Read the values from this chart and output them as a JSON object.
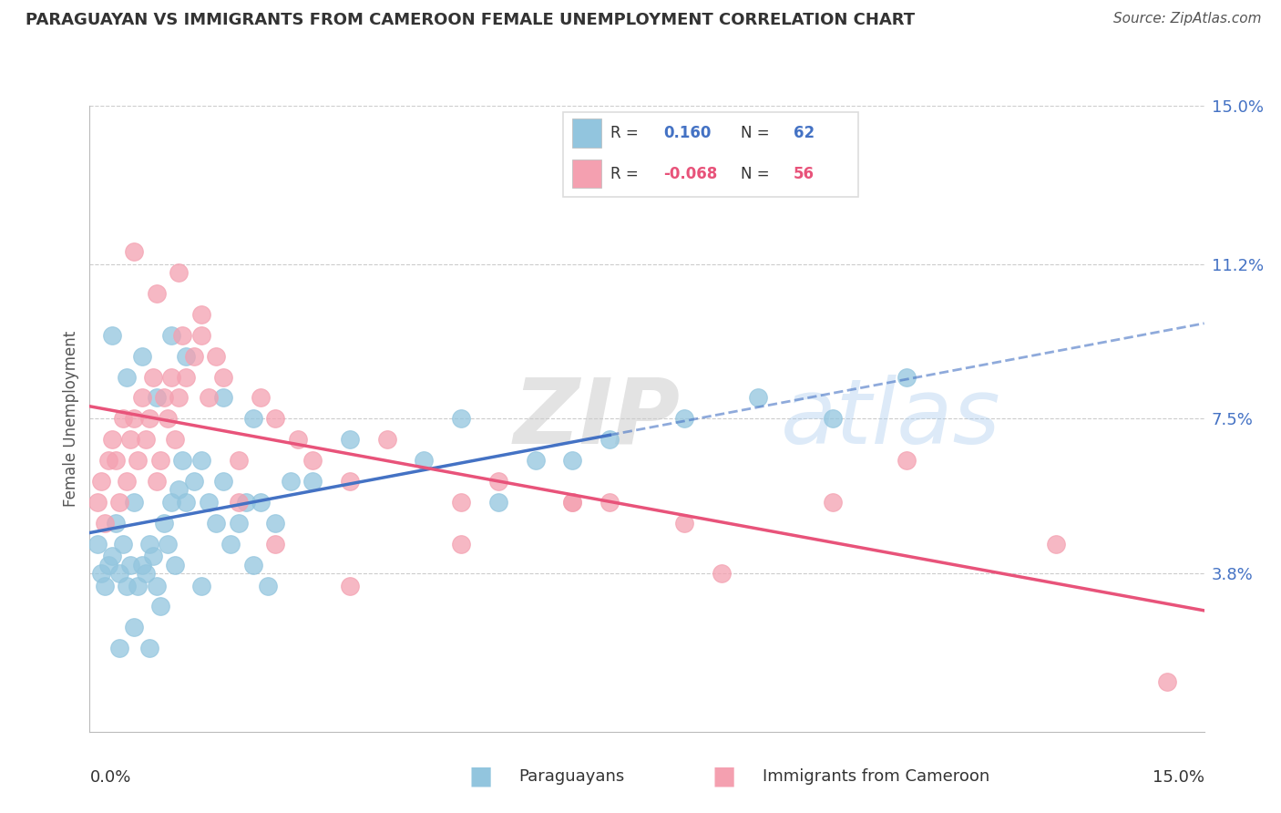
{
  "title": "PARAGUAYAN VS IMMIGRANTS FROM CAMEROON FEMALE UNEMPLOYMENT CORRELATION CHART",
  "source": "Source: ZipAtlas.com",
  "ylabel": "Female Unemployment",
  "right_ytick_values": [
    3.8,
    7.5,
    11.2,
    15.0
  ],
  "right_ytick_labels": [
    "3.8%",
    "7.5%",
    "11.2%",
    "15.0%"
  ],
  "xmin": 0.0,
  "xmax": 15.0,
  "ymin": 0.0,
  "ymax": 15.0,
  "color_paraguayan": "#92C5DE",
  "color_cameroon": "#F4A0B0",
  "color_line_paraguayan": "#4472C4",
  "color_line_cameroon": "#E8537A",
  "color_blue_text": "#4472C4",
  "color_pink_text": "#E8537A",
  "watermark_zip": "ZIP",
  "watermark_atlas": "atlas",
  "paraguayans_x": [
    0.1,
    0.15,
    0.2,
    0.25,
    0.3,
    0.35,
    0.4,
    0.45,
    0.5,
    0.55,
    0.6,
    0.65,
    0.7,
    0.75,
    0.8,
    0.85,
    0.9,
    0.95,
    1.0,
    1.05,
    1.1,
    1.15,
    1.2,
    1.25,
    1.3,
    1.4,
    1.5,
    1.6,
    1.7,
    1.8,
    1.9,
    2.0,
    2.1,
    2.2,
    2.3,
    2.4,
    2.5,
    2.7,
    0.3,
    0.5,
    0.7,
    0.9,
    1.1,
    1.3,
    1.8,
    2.2,
    3.0,
    3.5,
    4.5,
    5.0,
    5.5,
    6.0,
    6.5,
    7.0,
    8.0,
    9.0,
    10.0,
    11.0,
    0.4,
    0.6,
    0.8,
    1.5
  ],
  "paraguayans_y": [
    4.5,
    3.8,
    3.5,
    4.0,
    4.2,
    5.0,
    3.8,
    4.5,
    3.5,
    4.0,
    5.5,
    3.5,
    4.0,
    3.8,
    4.5,
    4.2,
    3.5,
    3.0,
    5.0,
    4.5,
    5.5,
    4.0,
    5.8,
    6.5,
    5.5,
    6.0,
    6.5,
    5.5,
    5.0,
    6.0,
    4.5,
    5.0,
    5.5,
    4.0,
    5.5,
    3.5,
    5.0,
    6.0,
    9.5,
    8.5,
    9.0,
    8.0,
    9.5,
    9.0,
    8.0,
    7.5,
    6.0,
    7.0,
    6.5,
    7.5,
    5.5,
    6.5,
    6.5,
    7.0,
    7.5,
    8.0,
    7.5,
    8.5,
    2.0,
    2.5,
    2.0,
    3.5
  ],
  "cameroon_x": [
    0.1,
    0.15,
    0.2,
    0.25,
    0.3,
    0.35,
    0.4,
    0.45,
    0.5,
    0.55,
    0.6,
    0.65,
    0.7,
    0.75,
    0.8,
    0.85,
    0.9,
    0.95,
    1.0,
    1.05,
    1.1,
    1.15,
    1.2,
    1.25,
    1.3,
    1.4,
    1.5,
    1.6,
    1.7,
    1.8,
    2.0,
    2.3,
    2.5,
    2.8,
    3.0,
    3.5,
    4.0,
    5.0,
    5.5,
    6.5,
    7.0,
    8.0,
    10.0,
    11.0,
    13.0,
    0.6,
    0.9,
    1.2,
    1.5,
    2.0,
    2.5,
    3.5,
    5.0,
    6.5,
    8.5,
    14.5
  ],
  "cameroon_y": [
    5.5,
    6.0,
    5.0,
    6.5,
    7.0,
    6.5,
    5.5,
    7.5,
    6.0,
    7.0,
    7.5,
    6.5,
    8.0,
    7.0,
    7.5,
    8.5,
    6.0,
    6.5,
    8.0,
    7.5,
    8.5,
    7.0,
    8.0,
    9.5,
    8.5,
    9.0,
    9.5,
    8.0,
    9.0,
    8.5,
    6.5,
    8.0,
    7.5,
    7.0,
    6.5,
    6.0,
    7.0,
    5.5,
    6.0,
    5.5,
    5.5,
    5.0,
    5.5,
    6.5,
    4.5,
    11.5,
    10.5,
    11.0,
    10.0,
    5.5,
    4.5,
    3.5,
    4.5,
    5.5,
    3.8,
    1.2
  ]
}
